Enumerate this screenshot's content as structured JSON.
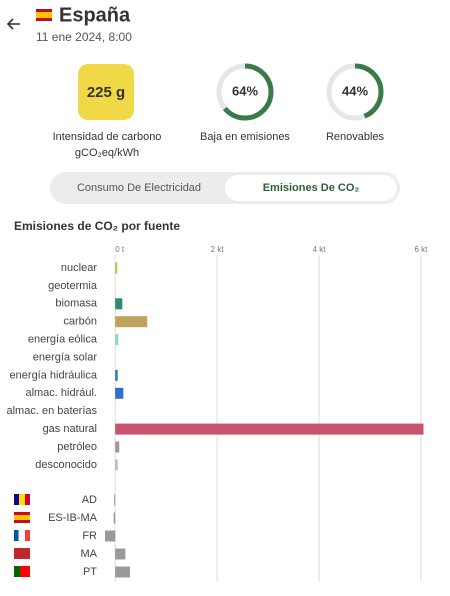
{
  "header": {
    "title": "España",
    "date": "11 ene 2024, 8:00"
  },
  "carbon_intensity": {
    "value_text": "225 g",
    "label": "Intensidad de carbono",
    "unit": "gCO₂eq/kWh"
  },
  "metrics": [
    {
      "label": "Baja en emisiones",
      "value": 64,
      "value_label": "64%"
    },
    {
      "label": "Renovables",
      "value": 44,
      "value_label": "44%"
    }
  ],
  "tabs": [
    "Consumo De Electricidad",
    "Emisiones De CO₂"
  ],
  "chart_data": {
    "type": "barh",
    "title": "Emisiones de CO₂ por fuente",
    "categories": [
      "nuclear",
      "geotermia",
      "biomasa",
      "carbón",
      "energía eólica",
      "energía solar",
      "energía hidráulica",
      "almac. hidrául.",
      "almac. en baterías",
      "gas natural",
      "petróleo",
      "desconocido",
      "AD",
      "ES-IB-MA",
      "FR",
      "MA",
      "PT"
    ],
    "values": [
      0.04,
      0,
      0.14,
      0.63,
      0.06,
      0,
      0.05,
      0.16,
      0,
      6.05,
      0.08,
      0.05,
      -0.02,
      -0.03,
      -0.2,
      0.2,
      0.29
    ],
    "colors": [
      "#b8c93c",
      "#c9a0d0",
      "#2f8a6f",
      "#bfa25c",
      "#8fd9c9",
      "#f2c744",
      "#2d7fb8",
      "#2f6fd0",
      "#8a6fd0",
      "#c9536e",
      "#9a9a9a",
      "#bdbdbd",
      "#9a9a9a",
      "#9a9a9a",
      "#9a9a9a",
      "#9a9a9a",
      "#9a9a9a"
    ],
    "xlim": [
      -0.2,
      6.06
    ],
    "xticks": [
      {
        "value": 0,
        "label": "0 t"
      },
      {
        "value": 2,
        "label": "2 kt"
      },
      {
        "value": 4,
        "label": "4 kt"
      },
      {
        "value": 6,
        "label": "6 kt"
      }
    ],
    "grid": true
  }
}
